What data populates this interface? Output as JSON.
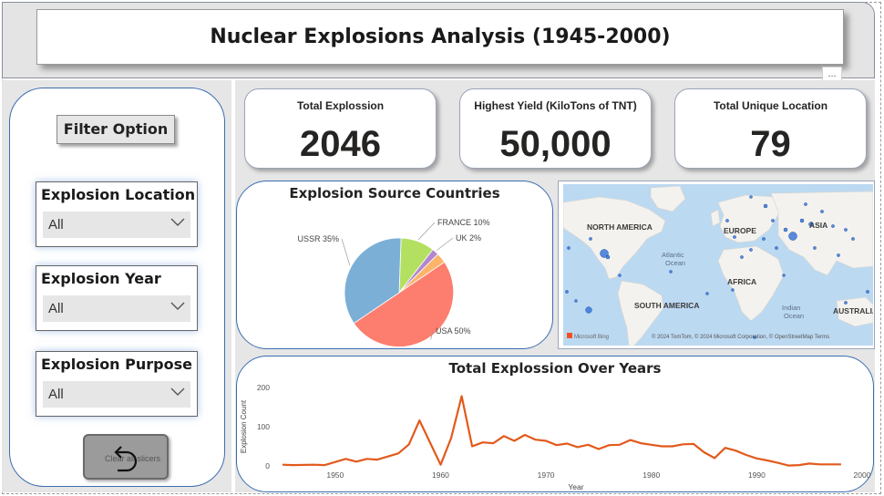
{
  "header": {
    "title": "Nuclear Explosions Analysis (1945-2000)",
    "more_label": "..."
  },
  "filters": {
    "filter_button": "Filter Option",
    "slicers": [
      {
        "title": "Explosion Location",
        "value": "All"
      },
      {
        "title": "Explosion Year",
        "value": "All"
      },
      {
        "title": "Explosion Purpose",
        "value": "All"
      }
    ],
    "clear_label": "Clear all slicers"
  },
  "kpis": [
    {
      "label": "Total Explossion",
      "value": "2046"
    },
    {
      "label": "Highest Yield (KiloTons of TNT)",
      "value": "50,000"
    },
    {
      "label": "Total Unique Location",
      "value": "79"
    }
  ],
  "map": {
    "labels": {
      "north_america": "NORTH AMERICA",
      "europe": "EUROPE",
      "asia": "ASIA",
      "africa": "AFRICA",
      "south_america": "SOUTH AMERICA",
      "australia": "AUSTRALIA",
      "atlantic": "Atlantic",
      "atlantic_ocean": "Ocean",
      "indian": "Indian",
      "indian_ocean": "Ocean"
    },
    "attribution": "© 2024 TomTom, © 2024 Microsoft Corporation, © OpenStreetMap Terms",
    "logo": "Microsoft Bing"
  },
  "colors": {
    "ussr": "#7bafd6",
    "usa": "#fd7e6f",
    "france": "#b3e061",
    "uk": "#b386cf",
    "other": "#fbb46a",
    "line": "#e25a1c",
    "accent_border": "#3c6db0"
  },
  "chart_data": [
    {
      "type": "pie",
      "title": "Explosion Source Countries",
      "slices": [
        {
          "name": "USA",
          "label": "USA 50%",
          "value": 50,
          "color": "#fd7e6f"
        },
        {
          "name": "USSR",
          "label": "USSR 35%",
          "value": 35,
          "color": "#7bafd6"
        },
        {
          "name": "FRANCE",
          "label": "FRANCE 10%",
          "value": 10,
          "color": "#b3e061"
        },
        {
          "name": "UK",
          "label": "UK 2%",
          "value": 2,
          "color": "#b386cf"
        },
        {
          "name": "",
          "label": "",
          "value": 3,
          "color": "#fbb46a"
        }
      ]
    },
    {
      "type": "line",
      "title": "Total Explossion Over Years",
      "xlabel": "Year",
      "ylabel": "Explosion Count",
      "xlim": [
        1945,
        2000
      ],
      "ylim": [
        0,
        200
      ],
      "xticks": [
        1950,
        1960,
        1970,
        1980,
        1990,
        2000
      ],
      "yticks": [
        0,
        100,
        200
      ],
      "x": [
        1945,
        1946,
        1948,
        1949,
        1951,
        1952,
        1953,
        1954,
        1955,
        1956,
        1957,
        1958,
        1960,
        1961,
        1962,
        1963,
        1964,
        1965,
        1966,
        1967,
        1968,
        1969,
        1970,
        1971,
        1972,
        1973,
        1974,
        1975,
        1976,
        1977,
        1978,
        1979,
        1980,
        1981,
        1982,
        1983,
        1984,
        1985,
        1986,
        1987,
        1988,
        1989,
        1990,
        1991,
        1992,
        1993,
        1994,
        1995,
        1996,
        1998
      ],
      "values": [
        3,
        2,
        3,
        2,
        18,
        11,
        18,
        16,
        24,
        32,
        55,
        116,
        3,
        71,
        178,
        50,
        60,
        58,
        76,
        64,
        79,
        67,
        64,
        53,
        57,
        48,
        54,
        43,
        53,
        54,
        66,
        58,
        54,
        50,
        50,
        55,
        56,
        35,
        20,
        46,
        39,
        28,
        19,
        14,
        8,
        1,
        2,
        6,
        4,
        4
      ]
    }
  ]
}
